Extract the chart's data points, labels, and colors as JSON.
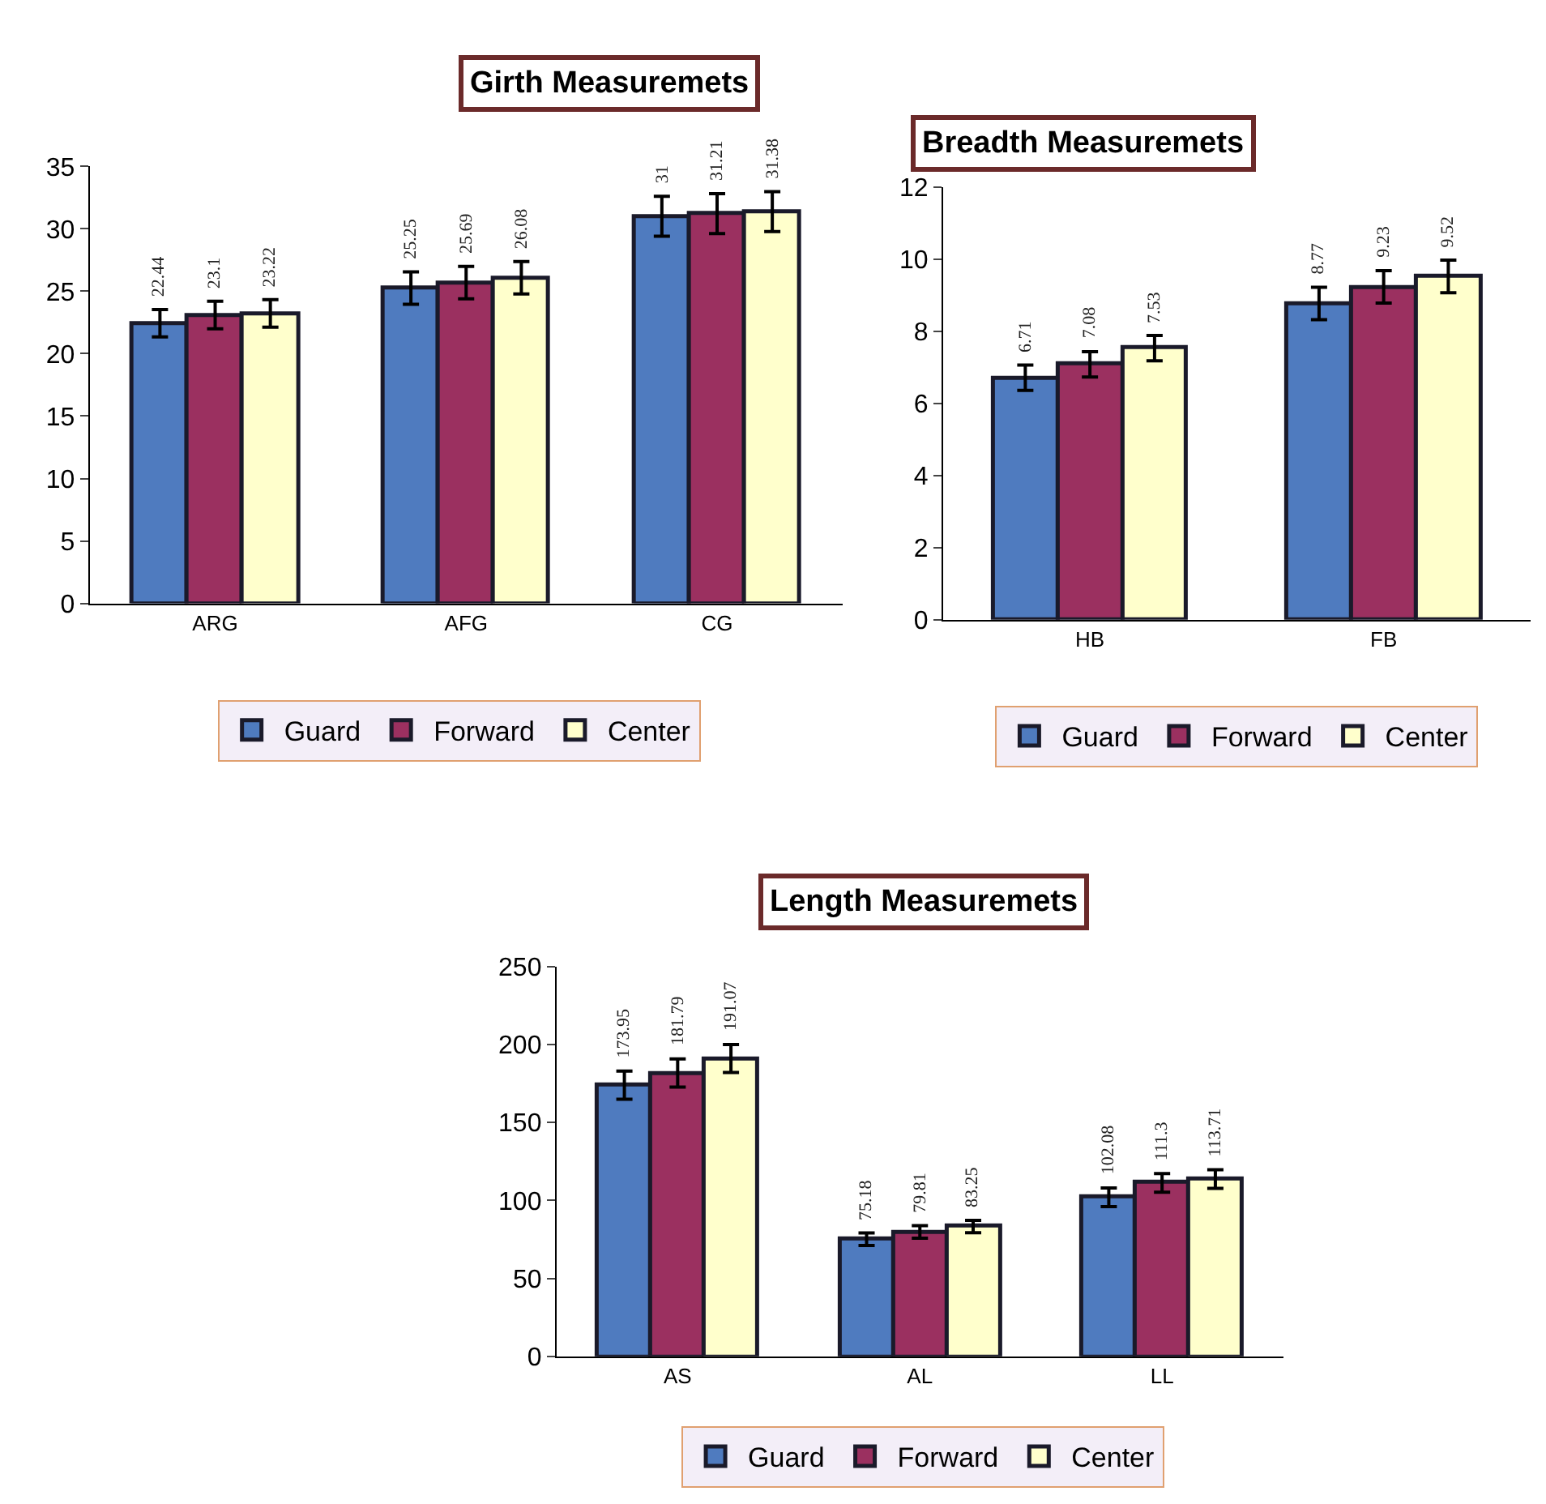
{
  "chart_data": [
    {
      "type": "bar",
      "title": "Girth Measuremets",
      "categories": [
        "ARG",
        "AFG",
        "CG"
      ],
      "ylim": [
        0,
        35
      ],
      "yticks": [
        0,
        5,
        10,
        15,
        20,
        25,
        30,
        35
      ],
      "legend": "bottom",
      "data_labels": true,
      "series": [
        {
          "name": "Guard",
          "color": "#4f7bbf",
          "values": [
            22.44,
            25.25,
            31
          ],
          "errors": [
            1.1,
            1.3,
            1.6
          ]
        },
        {
          "name": "Forward",
          "color": "#9b3060",
          "values": [
            23.1,
            25.69,
            31.21
          ],
          "errors": [
            1.1,
            1.3,
            1.6
          ]
        },
        {
          "name": "Center",
          "color": "#ffffcc",
          "values": [
            23.22,
            26.08,
            31.38
          ],
          "errors": [
            1.1,
            1.3,
            1.6
          ]
        }
      ]
    },
    {
      "type": "bar",
      "title": "Breadth Measuremets",
      "categories": [
        "HB",
        "FB"
      ],
      "ylim": [
        0,
        12
      ],
      "yticks": [
        0,
        2,
        4,
        6,
        8,
        10,
        12
      ],
      "legend": "bottom",
      "data_labels": true,
      "series": [
        {
          "name": "Guard",
          "color": "#4f7bbf",
          "values": [
            6.71,
            8.77
          ],
          "errors": [
            0.35,
            0.45
          ]
        },
        {
          "name": "Forward",
          "color": "#9b3060",
          "values": [
            7.08,
            9.23
          ],
          "errors": [
            0.35,
            0.45
          ]
        },
        {
          "name": "Center",
          "color": "#ffffcc",
          "values": [
            7.53,
            9.52
          ],
          "errors": [
            0.35,
            0.45
          ]
        }
      ]
    },
    {
      "type": "bar",
      "title": "Length Measuremets",
      "categories": [
        "AS",
        "AL",
        "LL"
      ],
      "ylim": [
        0,
        250
      ],
      "yticks": [
        0,
        50,
        100,
        150,
        200,
        250
      ],
      "legend": "bottom",
      "data_labels": true,
      "series": [
        {
          "name": "Guard",
          "color": "#4f7bbf",
          "values": [
            173.95,
            75.18,
            102.08
          ],
          "errors": [
            9,
            4,
            6
          ]
        },
        {
          "name": "Forward",
          "color": "#9b3060",
          "values": [
            181.79,
            79.81,
            111.3
          ],
          "errors": [
            9,
            4,
            6
          ]
        },
        {
          "name": "Center",
          "color": "#ffffcc",
          "values": [
            191.07,
            83.25,
            113.71
          ],
          "errors": [
            9,
            4,
            6
          ]
        }
      ]
    }
  ]
}
